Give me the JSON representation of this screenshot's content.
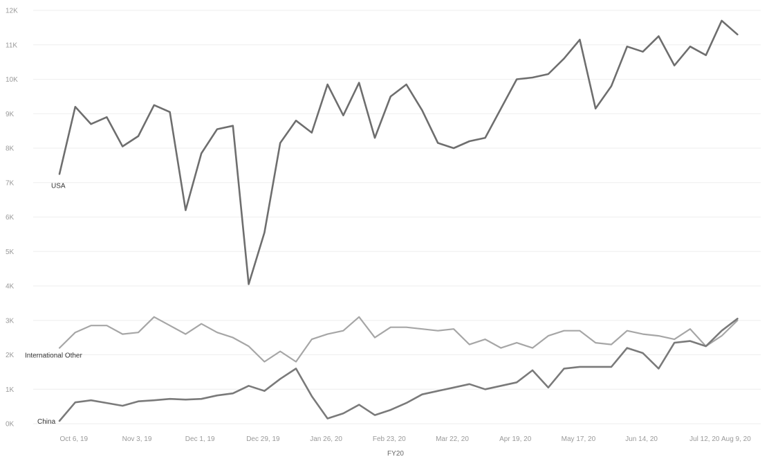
{
  "chart_data": {
    "type": "line",
    "title": "",
    "xlabel": "FY20",
    "ylabel": "",
    "ylim": [
      0,
      12000
    ],
    "grid": true,
    "yticks": [
      {
        "value": 0,
        "label": "0K"
      },
      {
        "value": 1000,
        "label": "1K"
      },
      {
        "value": 2000,
        "label": "2K"
      },
      {
        "value": 3000,
        "label": "3K"
      },
      {
        "value": 4000,
        "label": "4K"
      },
      {
        "value": 5000,
        "label": "5K"
      },
      {
        "value": 6000,
        "label": "6K"
      },
      {
        "value": 7000,
        "label": "7K"
      },
      {
        "value": 8000,
        "label": "8K"
      },
      {
        "value": 9000,
        "label": "9K"
      },
      {
        "value": 10000,
        "label": "10K"
      },
      {
        "value": 11000,
        "label": "11K"
      },
      {
        "value": 12000,
        "label": "12K"
      }
    ],
    "xticks": [
      {
        "week": 1,
        "label": "Oct 6, 19"
      },
      {
        "week": 5,
        "label": "Nov 3, 19"
      },
      {
        "week": 9,
        "label": "Dec 1, 19"
      },
      {
        "week": 13,
        "label": "Dec 29, 19"
      },
      {
        "week": 17,
        "label": "Jan 26, 20"
      },
      {
        "week": 21,
        "label": "Feb 23, 20"
      },
      {
        "week": 25,
        "label": "Mar 22, 20"
      },
      {
        "week": 29,
        "label": "Apr 19, 20"
      },
      {
        "week": 33,
        "label": "May 17, 20"
      },
      {
        "week": 37,
        "label": "Jun 14, 20"
      },
      {
        "week": 41,
        "label": "Jul 12, 20"
      },
      {
        "week": 43,
        "label": "Aug 9, 20"
      }
    ],
    "series": [
      {
        "name": "USA",
        "color": "#6e6e6e",
        "values": [
          7250,
          9200,
          8700,
          8900,
          8050,
          8350,
          9250,
          9050,
          6200,
          7850,
          8550,
          8650,
          4050,
          5550,
          8150,
          8800,
          8450,
          9850,
          8950,
          9900,
          8300,
          9500,
          9850,
          9100,
          8150,
          8000,
          8200,
          8300,
          9150,
          10000,
          10050,
          10150,
          10600,
          11150,
          9150,
          9800,
          10950,
          10800,
          11250,
          10400,
          10950,
          10700,
          11700,
          11300
        ]
      },
      {
        "name": "International Other",
        "color": "#a6a6a6",
        "values": [
          2200,
          2650,
          2850,
          2850,
          2600,
          2650,
          3100,
          2850,
          2600,
          2900,
          2650,
          2500,
          2250,
          1800,
          2100,
          1800,
          2450,
          2600,
          2700,
          3100,
          2500,
          2800,
          2800,
          2750,
          2700,
          2750,
          2300,
          2450,
          2200,
          2350,
          2200,
          2550,
          2700,
          2700,
          2350,
          2300,
          2700,
          2600,
          2550,
          2450,
          2750,
          2250,
          2550,
          3000
        ]
      },
      {
        "name": "China",
        "color": "#7a7a7a",
        "values": [
          80,
          620,
          680,
          600,
          520,
          650,
          680,
          720,
          700,
          720,
          820,
          880,
          1100,
          950,
          1300,
          1600,
          800,
          150,
          300,
          550,
          250,
          400,
          600,
          850,
          950,
          1050,
          1150,
          1000,
          1100,
          1200,
          1550,
          1050,
          1600,
          1650,
          1650,
          1650,
          2200,
          2050,
          1600,
          2350,
          2400,
          2250,
          2700,
          3050
        ]
      }
    ]
  }
}
